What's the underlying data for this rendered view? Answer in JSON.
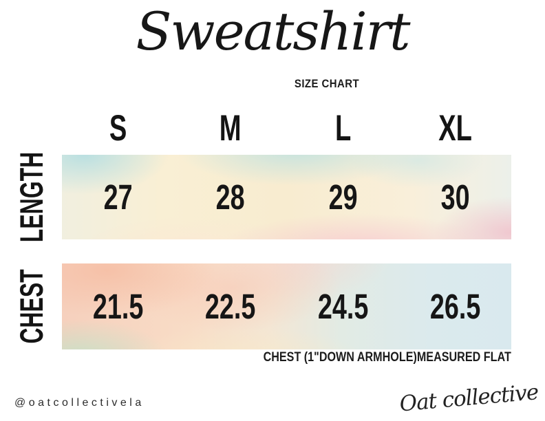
{
  "chart_data": {
    "type": "table",
    "title": "Sweatshirt",
    "subtitle": "SIZE CHART",
    "columns": [
      "S",
      "M",
      "L",
      "XL"
    ],
    "rows": [
      {
        "label": "LENGTH",
        "values": [
          27,
          28,
          29,
          30
        ]
      },
      {
        "label": "CHEST",
        "values": [
          21.5,
          22.5,
          24.5,
          26.5
        ]
      }
    ],
    "note": "CHEST (1\"DOWN ARMHOLE)MEASURED FLAT",
    "legend": "none",
    "grid": "off"
  },
  "footer": {
    "handle": "@oatcollectivela",
    "signature": "Oat collective"
  },
  "colors": {
    "background": "#ffffff",
    "text": "#1a1a1a",
    "watercolor_palette": [
      "#cfe7ea",
      "#f8efd6",
      "#f6c9d2",
      "#f6cfba",
      "#d3e7d6",
      "#dbeaee"
    ]
  }
}
